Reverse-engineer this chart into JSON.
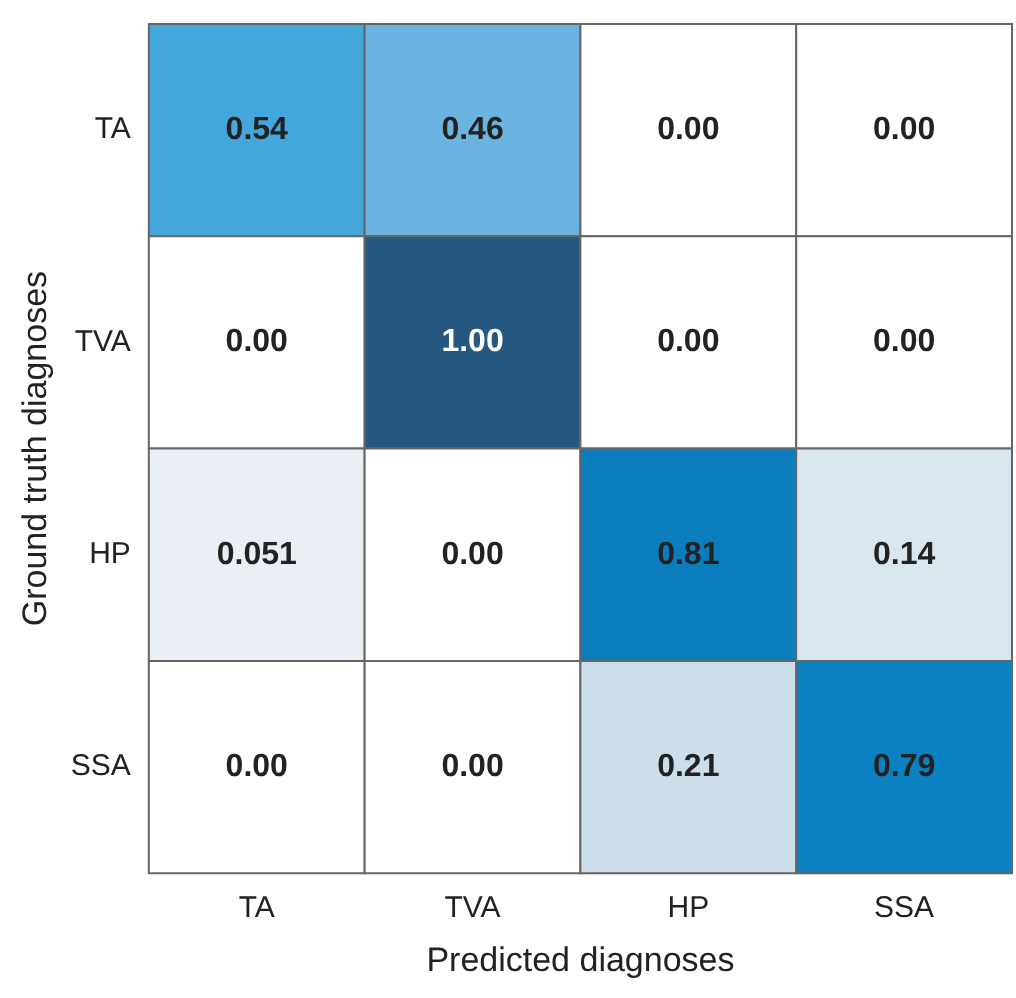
{
  "chart_data": {
    "type": "heatmap",
    "xlabel": "Predicted diagnoses",
    "ylabel": "Ground truth diagnoses",
    "categories": [
      "TA",
      "TVA",
      "HP",
      "SSA"
    ],
    "y_categories": [
      "TA",
      "TVA",
      "HP",
      "SSA"
    ],
    "cells": [
      [
        0.54,
        0.46,
        0,
        0
      ],
      [
        0,
        1,
        0,
        0
      ],
      [
        0.051,
        0,
        0.81,
        0.14
      ],
      [
        0,
        0,
        0.21,
        0.79
      ]
    ],
    "cell_labels": [
      [
        "0.54",
        "0.46",
        "0.00",
        "0.00"
      ],
      [
        "0.00",
        "1.00",
        "0.00",
        "0.00"
      ],
      [
        "0.051",
        "0.00",
        "0.81",
        "0.14"
      ],
      [
        "0.00",
        "0.00",
        "0.21",
        "0.79"
      ]
    ]
  }
}
